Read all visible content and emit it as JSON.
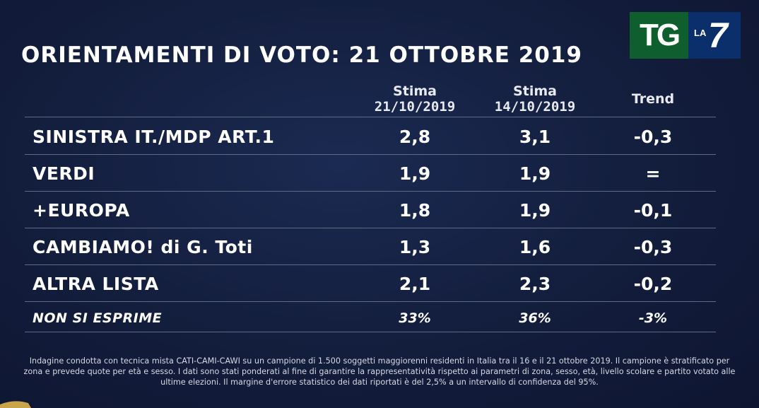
{
  "title": "ORIENTAMENTI DI VOTO: 21 OTTOBRE 2019",
  "logo": {
    "tg": "TG",
    "la": "LA",
    "seven": "7"
  },
  "columns": [
    {
      "line1": "Stima",
      "line2": "21/10/2019"
    },
    {
      "line1": "Stima",
      "line2": "14/10/2019"
    },
    {
      "line1": "Trend",
      "line2": ""
    }
  ],
  "rows": [
    {
      "label": "SINISTRA IT./MDP ART.1",
      "current": "2,8",
      "previous": "3,1",
      "trend": "-0,3"
    },
    {
      "label": "VERDI",
      "current": "1,9",
      "previous": "1,9",
      "trend": "="
    },
    {
      "label": "+EUROPA",
      "current": "1,8",
      "previous": "1,9",
      "trend": "-0,1"
    },
    {
      "label": "CAMBIAMO! di G. Toti",
      "current": "1,3",
      "previous": "1,6",
      "trend": "-0,3"
    },
    {
      "label": "ALTRA LISTA",
      "current": "2,1",
      "previous": "2,3",
      "trend": "-0,2"
    },
    {
      "label": "NON SI ESPRIME",
      "current": "33%",
      "previous": "36%",
      "trend": "-3%"
    }
  ],
  "footnote": "Indagine condotta con tecnica mista CATI-CAMI-CAWI su un campione di 1.500 soggetti maggiorenni residenti in Italia tra il 16 e il 21 ottobre 2019. Il campione è stratificato per zona e prevede quote per età e sesso. I dati sono stati ponderati al fine di garantire la rappresentatività rispetto ai parametri di zona, sesso, età, livello scolare e partito votato alle ultime elezioni. Il margine d'errore statistico dei dati riportati è del 2,5% a un intervallo di confidenza del 95%.",
  "colors": {
    "background": "#131d3c",
    "tg_green": "#0e5e2e",
    "la7_blue": "#0a2f6b",
    "rule": "#5f6a86"
  }
}
